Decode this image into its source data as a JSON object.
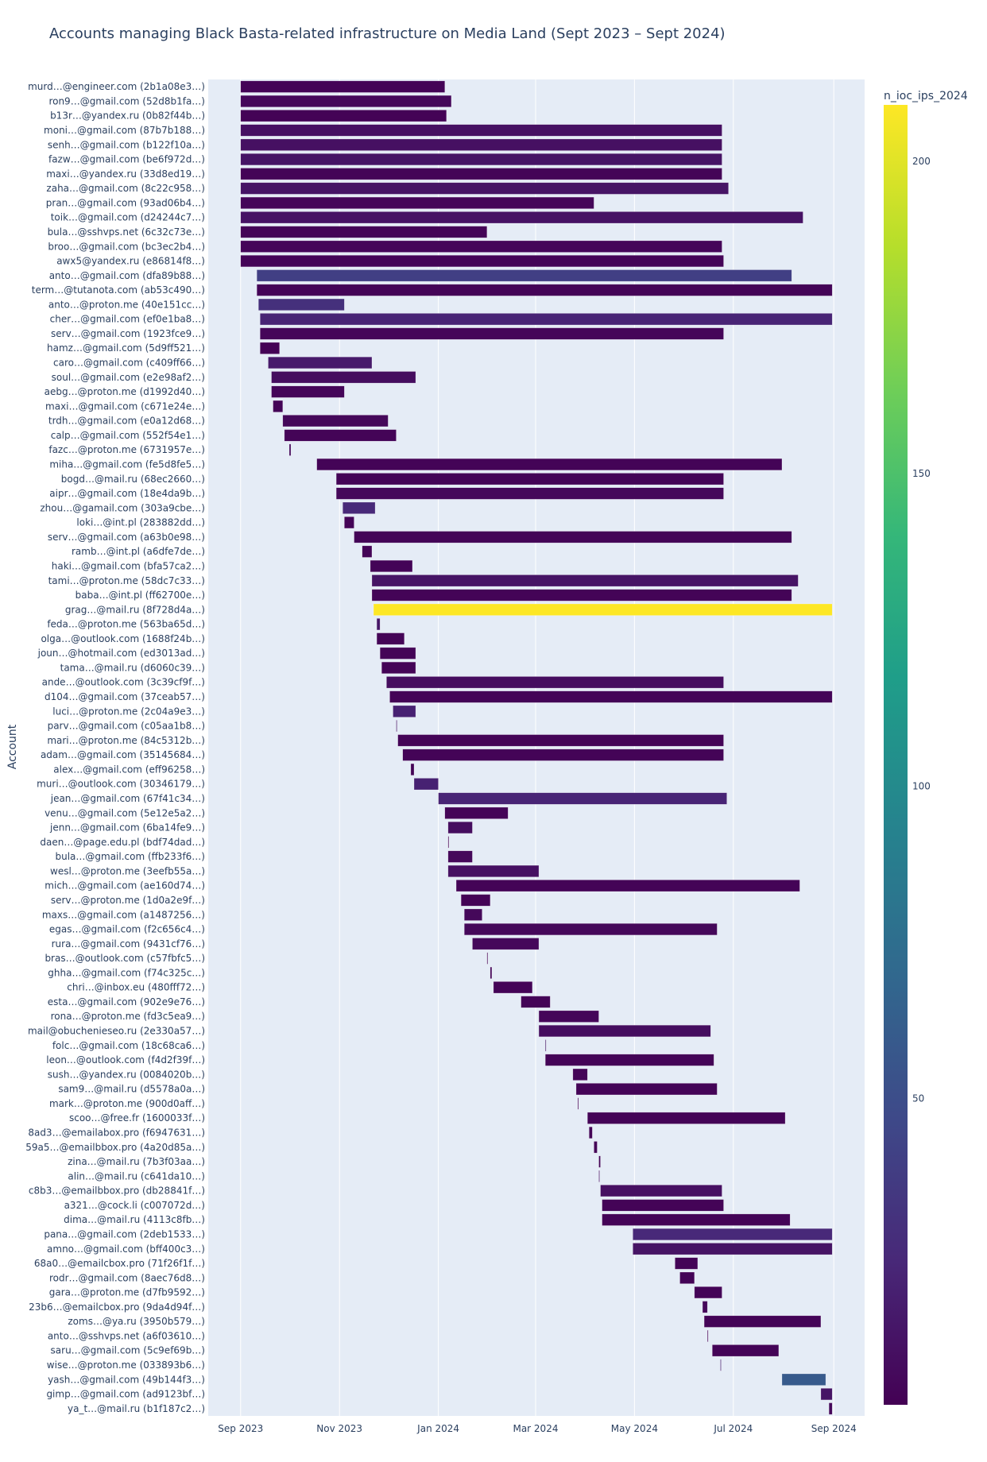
{
  "chart_data": {
    "type": "gantt",
    "title": "Accounts managing Black Basta-related infrastructure on Media Land (Sept 2023 – Sept 2024)",
    "ylabel": "Account",
    "xlabel": "",
    "x_range": [
      "2023-08-12",
      "2024-09-20"
    ],
    "x_ticks": [
      {
        "date": "2023-09-01",
        "label": "Sep 2023"
      },
      {
        "date": "2023-11-01",
        "label": "Nov 2023"
      },
      {
        "date": "2024-01-01",
        "label": "Jan 2024"
      },
      {
        "date": "2024-03-01",
        "label": "Mar 2024"
      },
      {
        "date": "2024-05-01",
        "label": "May 2024"
      },
      {
        "date": "2024-07-01",
        "label": "Jul 2024"
      },
      {
        "date": "2024-09-01",
        "label": "Sep 2024"
      }
    ],
    "colorbar": {
      "title": "n_ioc_ips_2024",
      "colorscale": "Viridis",
      "range": [
        1,
        209
      ],
      "ticks": [
        50,
        100,
        150,
        200
      ]
    },
    "grid": true,
    "rows": [
      {
        "account": "murd…@engineer.com (2b1a08e3…)",
        "start": "2023-09-01",
        "end": "2024-01-05",
        "n_ioc_ips_2024": 2
      },
      {
        "account": "ron9…@gmail.com (52d8b1fa…)",
        "start": "2023-09-01",
        "end": "2024-01-09",
        "n_ioc_ips_2024": 5
      },
      {
        "account": "b13r…@yandex.ru (0b82f44b…)",
        "start": "2023-09-01",
        "end": "2024-01-06",
        "n_ioc_ips_2024": 2
      },
      {
        "account": "moni…@gmail.com (87b7b188…)",
        "start": "2023-09-01",
        "end": "2024-06-24",
        "n_ioc_ips_2024": 10
      },
      {
        "account": "senh…@gmail.com (b122f10a…)",
        "start": "2023-09-01",
        "end": "2024-06-24",
        "n_ioc_ips_2024": 10
      },
      {
        "account": "fazw…@gmail.com (be6f972d…)",
        "start": "2023-09-01",
        "end": "2024-06-24",
        "n_ioc_ips_2024": 12
      },
      {
        "account": "maxi…@yandex.ru (33d8ed19…)",
        "start": "2023-09-01",
        "end": "2024-06-24",
        "n_ioc_ips_2024": 3
      },
      {
        "account": "zaha…@gmail.com (8c22c958…)",
        "start": "2023-09-01",
        "end": "2024-06-28",
        "n_ioc_ips_2024": 12
      },
      {
        "account": "pran…@gmail.com (93ad06b4…)",
        "start": "2023-09-01",
        "end": "2024-04-06",
        "n_ioc_ips_2024": 4
      },
      {
        "account": "toik…@gmail.com (d24244c7…)",
        "start": "2023-09-01",
        "end": "2024-08-13",
        "n_ioc_ips_2024": 11
      },
      {
        "account": "bula…@sshvps.net (6c32c73e…)",
        "start": "2023-09-01",
        "end": "2024-01-31",
        "n_ioc_ips_2024": 3
      },
      {
        "account": "broo…@gmail.com (bc3ec2b4…)",
        "start": "2023-09-01",
        "end": "2024-06-24",
        "n_ioc_ips_2024": 4
      },
      {
        "account": "awx5@yandex.ru (e86814f8…)",
        "start": "2023-09-01",
        "end": "2024-06-25",
        "n_ioc_ips_2024": 3
      },
      {
        "account": "anto…@gmail.com (dfa89b88…)",
        "start": "2023-09-11",
        "end": "2024-08-06",
        "n_ioc_ips_2024": 40
      },
      {
        "account": "term…@tutanota.com (ab53c490…)",
        "start": "2023-09-11",
        "end": "2024-08-31",
        "n_ioc_ips_2024": 3
      },
      {
        "account": "anto…@proton.me (40e151cc…)",
        "start": "2023-09-12",
        "end": "2023-11-04",
        "n_ioc_ips_2024": 30
      },
      {
        "account": "cher…@gmail.com (ef0e1ba8…)",
        "start": "2023-09-13",
        "end": "2024-08-31",
        "n_ioc_ips_2024": 22
      },
      {
        "account": "serv…@gmail.com (1923fce9…)",
        "start": "2023-09-13",
        "end": "2024-06-25",
        "n_ioc_ips_2024": 4
      },
      {
        "account": "hamz…@gmail.com (5d9ff521…)",
        "start": "2023-09-13",
        "end": "2023-09-25",
        "n_ioc_ips_2024": 2
      },
      {
        "account": "caro…@gmail.com (c409ff66…)",
        "start": "2023-09-18",
        "end": "2023-11-21",
        "n_ioc_ips_2024": 16
      },
      {
        "account": "soul…@gmail.com (e2e98af2…)",
        "start": "2023-09-20",
        "end": "2023-12-18",
        "n_ioc_ips_2024": 8
      },
      {
        "account": "aebg…@proton.me (d1992d40…)",
        "start": "2023-09-20",
        "end": "2023-11-04",
        "n_ioc_ips_2024": 4
      },
      {
        "account": "maxi…@gmail.com (c671e24e…)",
        "start": "2023-09-21",
        "end": "2023-09-27",
        "n_ioc_ips_2024": 3
      },
      {
        "account": "trdh…@gmail.com (e0a12d68…)",
        "start": "2023-09-27",
        "end": "2023-12-01",
        "n_ioc_ips_2024": 5
      },
      {
        "account": "calp…@gmail.com (552f54e1…)",
        "start": "2023-09-28",
        "end": "2023-12-06",
        "n_ioc_ips_2024": 3
      },
      {
        "account": "fazc…@proton.me (6731957e…)",
        "start": "2023-10-01",
        "end": "2023-10-02",
        "n_ioc_ips_2024": 5
      },
      {
        "account": "miha…@gmail.com (fe5d8fe5…)",
        "start": "2023-10-18",
        "end": "2024-07-31",
        "n_ioc_ips_2024": 3
      },
      {
        "account": "bogd…@mail.ru (68ec2660…)",
        "start": "2023-10-30",
        "end": "2024-06-25",
        "n_ioc_ips_2024": 3
      },
      {
        "account": "aipr…@gmail.com (18e4da9b…)",
        "start": "2023-10-30",
        "end": "2024-06-25",
        "n_ioc_ips_2024": 5
      },
      {
        "account": "zhou…@gamail.com (303a9cbe…)",
        "start": "2023-11-03",
        "end": "2023-11-23",
        "n_ioc_ips_2024": 25
      },
      {
        "account": "loki…@int.pl (283882dd…)",
        "start": "2023-11-04",
        "end": "2023-11-10",
        "n_ioc_ips_2024": 3
      },
      {
        "account": "serv…@gmail.com (a63b0e98…)",
        "start": "2023-11-10",
        "end": "2024-08-06",
        "n_ioc_ips_2024": 3
      },
      {
        "account": "ramb…@int.pl (a6dfe7de…)",
        "start": "2023-11-15",
        "end": "2023-11-21",
        "n_ioc_ips_2024": 3
      },
      {
        "account": "haki…@gmail.com (bfa57ca2…)",
        "start": "2023-11-20",
        "end": "2023-12-16",
        "n_ioc_ips_2024": 3
      },
      {
        "account": "tami…@proton.me (58dc7c33…)",
        "start": "2023-11-21",
        "end": "2024-08-10",
        "n_ioc_ips_2024": 12
      },
      {
        "account": "baba…@int.pl (ff62700e…)",
        "start": "2023-11-21",
        "end": "2024-08-06",
        "n_ioc_ips_2024": 3
      },
      {
        "account": "grag…@mail.ru (8f728d4a…)",
        "start": "2023-11-22",
        "end": "2024-08-31",
        "n_ioc_ips_2024": 209
      },
      {
        "account": "feda…@proton.me (563ba65d…)",
        "start": "2023-11-24",
        "end": "2023-11-26",
        "n_ioc_ips_2024": 14
      },
      {
        "account": "olga…@outlook.com (1688f24b…)",
        "start": "2023-11-24",
        "end": "2023-12-11",
        "n_ioc_ips_2024": 3
      },
      {
        "account": "joun…@hotmail.com (ed3013ad…)",
        "start": "2023-11-26",
        "end": "2023-12-18",
        "n_ioc_ips_2024": 3
      },
      {
        "account": "tama…@mail.ru (d6060c39…)",
        "start": "2023-11-27",
        "end": "2023-12-18",
        "n_ioc_ips_2024": 3
      },
      {
        "account": "ande…@outlook.com (3c39cf9f…)",
        "start": "2023-11-30",
        "end": "2024-06-25",
        "n_ioc_ips_2024": 8
      },
      {
        "account": "d104…@gmail.com (37ceab57…)",
        "start": "2023-12-02",
        "end": "2024-08-31",
        "n_ioc_ips_2024": 3
      },
      {
        "account": "luci…@proton.me (2c04a9e3…)",
        "start": "2023-12-04",
        "end": "2023-12-18",
        "n_ioc_ips_2024": 20
      },
      {
        "account": "parv…@gmail.com (c05aa1b8…)",
        "start": "2023-12-06",
        "end": "2023-12-06",
        "n_ioc_ips_2024": 14
      },
      {
        "account": "mari…@proton.me (84c5312b…)",
        "start": "2023-12-07",
        "end": "2024-06-25",
        "n_ioc_ips_2024": 3
      },
      {
        "account": "adam…@gmail.com (35145684…)",
        "start": "2023-12-10",
        "end": "2024-06-25",
        "n_ioc_ips_2024": 3
      },
      {
        "account": "alex…@gmail.com (eff96258…)",
        "start": "2023-12-15",
        "end": "2023-12-17",
        "n_ioc_ips_2024": 3
      },
      {
        "account": "muri…@outlook.com (30346179…)",
        "start": "2023-12-17",
        "end": "2024-01-01",
        "n_ioc_ips_2024": 20
      },
      {
        "account": "jean…@gmail.com (67f41c34…)",
        "start": "2024-01-01",
        "end": "2024-06-27",
        "n_ioc_ips_2024": 22
      },
      {
        "account": "venu…@gmail.com (5e12e5a2…)",
        "start": "2024-01-05",
        "end": "2024-02-13",
        "n_ioc_ips_2024": 3
      },
      {
        "account": "jenn…@gmail.com (6ba14fe9…)",
        "start": "2024-01-07",
        "end": "2024-01-22",
        "n_ioc_ips_2024": 8
      },
      {
        "account": "daen…@page.edu.pl (bdf74dad…)",
        "start": "2024-01-07",
        "end": "2024-01-07",
        "n_ioc_ips_2024": 1
      },
      {
        "account": "bula…@gmail.com (ffb233f6…)",
        "start": "2024-01-07",
        "end": "2024-01-22",
        "n_ioc_ips_2024": 5
      },
      {
        "account": "wesl…@proton.me (3eefb55a…)",
        "start": "2024-01-07",
        "end": "2024-03-03",
        "n_ioc_ips_2024": 10
      },
      {
        "account": "mich…@gmail.com (ae160d74…)",
        "start": "2024-01-12",
        "end": "2024-08-11",
        "n_ioc_ips_2024": 3
      },
      {
        "account": "serv…@proton.me (1d0a2e9f…)",
        "start": "2024-01-15",
        "end": "2024-02-02",
        "n_ioc_ips_2024": 2
      },
      {
        "account": "maxs…@gmail.com (a1487256…)",
        "start": "2024-01-17",
        "end": "2024-01-28",
        "n_ioc_ips_2024": 5
      },
      {
        "account": "egas…@gmail.com (f2c656c4…)",
        "start": "2024-01-17",
        "end": "2024-06-21",
        "n_ioc_ips_2024": 5
      },
      {
        "account": "rura…@gmail.com (9431cf76…)",
        "start": "2024-01-22",
        "end": "2024-03-03",
        "n_ioc_ips_2024": 5
      },
      {
        "account": "bras…@outlook.com (c57fbfc5…)",
        "start": "2024-01-31",
        "end": "2024-01-31",
        "n_ioc_ips_2024": 1
      },
      {
        "account": "ghha…@gmail.com (f74c325c…)",
        "start": "2024-02-02",
        "end": "2024-02-03",
        "n_ioc_ips_2024": 3
      },
      {
        "account": "chri…@inbox.eu (480fff72…)",
        "start": "2024-02-04",
        "end": "2024-02-28",
        "n_ioc_ips_2024": 3
      },
      {
        "account": "esta…@gmail.com (902e9e76…)",
        "start": "2024-02-21",
        "end": "2024-03-10",
        "n_ioc_ips_2024": 3
      },
      {
        "account": "rona…@proton.me (fd3c5ea9…)",
        "start": "2024-03-03",
        "end": "2024-04-09",
        "n_ioc_ips_2024": 4
      },
      {
        "account": "mail@obuchenieseo.ru (2e330a57…)",
        "start": "2024-03-03",
        "end": "2024-06-17",
        "n_ioc_ips_2024": 8
      },
      {
        "account": "folc…@gmail.com (18c68ca6…)",
        "start": "2024-03-07",
        "end": "2024-03-07",
        "n_ioc_ips_2024": 14
      },
      {
        "account": "leon…@outlook.com (f4d2f39f…)",
        "start": "2024-03-07",
        "end": "2024-06-19",
        "n_ioc_ips_2024": 3
      },
      {
        "account": "sush…@yandex.ru (0084020b…)",
        "start": "2024-03-24",
        "end": "2024-04-02",
        "n_ioc_ips_2024": 3
      },
      {
        "account": "sam9…@mail.ru (d5578a0a…)",
        "start": "2024-03-26",
        "end": "2024-06-21",
        "n_ioc_ips_2024": 3
      },
      {
        "account": "mark…@proton.me (900d0aff…)",
        "start": "2024-03-27",
        "end": "2024-03-27",
        "n_ioc_ips_2024": 1
      },
      {
        "account": "scoo…@free.fr (1600033f…)",
        "start": "2024-04-02",
        "end": "2024-08-02",
        "n_ioc_ips_2024": 3
      },
      {
        "account": "8ad3…@emailabox.pro (f6947631…)",
        "start": "2024-04-03",
        "end": "2024-04-05",
        "n_ioc_ips_2024": 3
      },
      {
        "account": "59a5…@emailbbox.pro (4a20d85a…)",
        "start": "2024-04-06",
        "end": "2024-04-08",
        "n_ioc_ips_2024": 3
      },
      {
        "account": "zina…@mail.ru (7b3f03aa…)",
        "start": "2024-04-09",
        "end": "2024-04-10",
        "n_ioc_ips_2024": 3
      },
      {
        "account": "alin…@mail.ru (c641da10…)",
        "start": "2024-04-09",
        "end": "2024-04-09",
        "n_ioc_ips_2024": 12
      },
      {
        "account": "c8b3…@emailbbox.pro (db28841f…)",
        "start": "2024-04-10",
        "end": "2024-06-24",
        "n_ioc_ips_2024": 10
      },
      {
        "account": "a321…@cock.li (c007072d…)",
        "start": "2024-04-11",
        "end": "2024-06-25",
        "n_ioc_ips_2024": 3
      },
      {
        "account": "dima…@mail.ru (4113c8fb…)",
        "start": "2024-04-11",
        "end": "2024-08-05",
        "n_ioc_ips_2024": 3
      },
      {
        "account": "pana…@gmail.com (2deb1533…)",
        "start": "2024-04-30",
        "end": "2024-08-31",
        "n_ioc_ips_2024": 25
      },
      {
        "account": "amno…@gmail.com (bff400c3…)",
        "start": "2024-04-30",
        "end": "2024-08-31",
        "n_ioc_ips_2024": 12
      },
      {
        "account": "68a0…@emailcbox.pro (71f26f1f…)",
        "start": "2024-05-26",
        "end": "2024-06-09",
        "n_ioc_ips_2024": 3
      },
      {
        "account": "rodr…@gmail.com (8aec76d8…)",
        "start": "2024-05-29",
        "end": "2024-06-07",
        "n_ioc_ips_2024": 3
      },
      {
        "account": "gara…@proton.me (d7fb9592…)",
        "start": "2024-06-07",
        "end": "2024-06-24",
        "n_ioc_ips_2024": 3
      },
      {
        "account": "23b6…@emailcbox.pro (9da4d94f…)",
        "start": "2024-06-12",
        "end": "2024-06-15",
        "n_ioc_ips_2024": 5
      },
      {
        "account": "zoms…@ya.ru (3950b579…)",
        "start": "2024-06-13",
        "end": "2024-08-24",
        "n_ioc_ips_2024": 3
      },
      {
        "account": "anto…@sshvps.net (a6f03610…)",
        "start": "2024-06-15",
        "end": "2024-06-15",
        "n_ioc_ips_2024": 1
      },
      {
        "account": "saru…@gmail.com (5c9ef69b…)",
        "start": "2024-06-18",
        "end": "2024-07-29",
        "n_ioc_ips_2024": 3
      },
      {
        "account": "wise…@proton.me (033893b6…)",
        "start": "2024-06-23",
        "end": "2024-06-23",
        "n_ioc_ips_2024": 20
      },
      {
        "account": "yash…@gmail.com (49b144f3…)",
        "start": "2024-07-31",
        "end": "2024-08-27",
        "n_ioc_ips_2024": 60
      },
      {
        "account": "gimp…@gmail.com (ad9123bf…)",
        "start": "2024-08-24",
        "end": "2024-08-31",
        "n_ioc_ips_2024": 12
      },
      {
        "account": "ya_t…@mail.ru (b1f187c2…)",
        "start": "2024-08-29",
        "end": "2024-08-31",
        "n_ioc_ips_2024": 5
      }
    ]
  }
}
